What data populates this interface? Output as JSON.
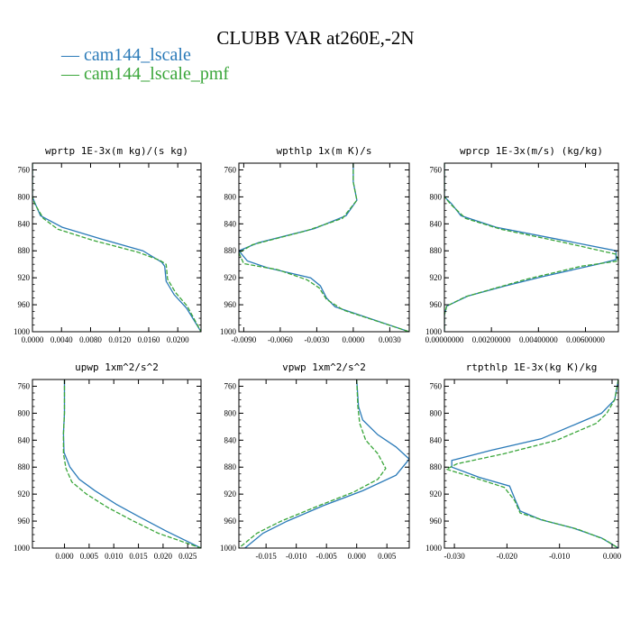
{
  "title": "CLUBB VAR at260E,-2N",
  "legend": [
    {
      "label": "cam144_lscale",
      "color": "#2a7ab8"
    },
    {
      "label": "cam144_lscale_pmf",
      "color": "#3aa63a"
    }
  ],
  "chart_data": [
    {
      "type": "line",
      "title": "wprtp   1E-3x(m kg)/(s kg)",
      "xlim": [
        0.0,
        0.0232
      ],
      "ylim": [
        750,
        1000
      ],
      "xticks": [
        0.0,
        0.004,
        0.008,
        0.012,
        0.016,
        0.02
      ],
      "xtick_labels": [
        "0.0000",
        "0.0040",
        "0.0080",
        "0.0120",
        "0.0160",
        "0.0200"
      ],
      "yticks": [
        760,
        800,
        840,
        880,
        920,
        960,
        1000
      ],
      "ytick_labels": [
        "760",
        "800",
        "840",
        "880",
        "920",
        "960",
        "1000"
      ],
      "series": [
        {
          "name": "cam144_lscale",
          "x": [
            0.0,
            0.0,
            0.0003,
            0.0011,
            0.0041,
            0.0093,
            0.0152,
            0.0178,
            0.0182,
            0.0184,
            0.0195,
            0.0212,
            0.0232
          ],
          "y": [
            750,
            800,
            808,
            828,
            845,
            862,
            880,
            897,
            903,
            925,
            945,
            965,
            1000
          ]
        },
        {
          "name": "cam144_lscale_pmf",
          "x": [
            0.0,
            0.0,
            0.0003,
            0.0015,
            0.0035,
            0.0085,
            0.0145,
            0.0175,
            0.0184,
            0.0186,
            0.0197,
            0.0213,
            0.0232
          ],
          "y": [
            750,
            800,
            810,
            832,
            848,
            865,
            882,
            894,
            900,
            922,
            942,
            962,
            1000
          ]
        }
      ]
    },
    {
      "type": "line",
      "title": "wpthlp   1x(m K)/s",
      "xlim": [
        -0.0094,
        0.0046
      ],
      "ylim": [
        750,
        1000
      ],
      "xticks": [
        -0.009,
        -0.006,
        -0.003,
        0.0,
        0.003
      ],
      "xtick_labels": [
        "-0.0090",
        "-0.0060",
        "-0.0030",
        "0.0000",
        "0.0030"
      ],
      "yticks": [
        760,
        800,
        840,
        880,
        920,
        960,
        1000
      ],
      "ytick_labels": [
        "760",
        "800",
        "840",
        "880",
        "920",
        "960",
        "1000"
      ],
      "series": [
        {
          "name": "cam144_lscale",
          "x": [
            0.0,
            0.0,
            0.0003,
            -0.0006,
            -0.0032,
            -0.0078,
            -0.0094,
            -0.0087,
            -0.0071,
            -0.0035,
            -0.0027,
            -0.0022,
            -0.0015,
            0.0046
          ],
          "y": [
            750,
            778,
            805,
            828,
            847,
            868,
            880,
            895,
            905,
            920,
            932,
            950,
            963,
            1000
          ]
        },
        {
          "name": "cam144_lscale_pmf",
          "x": [
            0.0,
            0.0,
            0.0003,
            -0.0009,
            -0.0038,
            -0.0083,
            -0.0094,
            -0.009,
            -0.0062,
            -0.0038,
            -0.0028,
            -0.0022,
            -0.0008,
            0.0046
          ],
          "y": [
            750,
            778,
            805,
            832,
            850,
            871,
            883,
            899,
            908,
            923,
            935,
            952,
            968,
            1000
          ]
        }
      ]
    },
    {
      "type": "line",
      "title": "wprcp   1E-3x(m/s) (kg/kg)",
      "xlim": [
        0.0,
        0.0074
      ],
      "ylim": [
        750,
        1000
      ],
      "xticks": [
        0.0,
        0.002,
        0.004,
        0.006
      ],
      "xtick_labels": [
        "0.00000000",
        "0.00200000",
        "0.00400000",
        "0.00600000"
      ],
      "yticks": [
        760,
        800,
        840,
        880,
        920,
        960,
        1000
      ],
      "ytick_labels": [
        "760",
        "800",
        "840",
        "880",
        "920",
        "960",
        "1000"
      ],
      "series": [
        {
          "name": "cam144_lscale",
          "x": [
            0.0,
            0.0,
            0.0003,
            0.0007,
            0.0022,
            0.0047,
            0.0073,
            0.0073,
            0.0065,
            0.0042,
            0.0026,
            0.001,
            0.0001,
            0.0,
            0.0
          ],
          "y": [
            750,
            800,
            810,
            828,
            845,
            862,
            880,
            893,
            900,
            918,
            932,
            947,
            962,
            975,
            1000
          ]
        },
        {
          "name": "cam144_lscale_pmf",
          "x": [
            0.0,
            0.0,
            0.0003,
            0.0009,
            0.0024,
            0.005,
            0.0073,
            0.0074,
            0.0058,
            0.0035,
            0.0022,
            0.0009,
            0.0001,
            0.0,
            0.0
          ],
          "y": [
            750,
            800,
            812,
            832,
            848,
            867,
            885,
            895,
            903,
            922,
            935,
            948,
            962,
            975,
            1000
          ]
        }
      ]
    },
    {
      "type": "line",
      "title": "upwp   1xm^2/s^2",
      "xlim": [
        -0.0065,
        0.0277
      ],
      "ylim": [
        750,
        1000
      ],
      "xticks": [
        0.0,
        0.005,
        0.01,
        0.015,
        0.02,
        0.025
      ],
      "xtick_labels": [
        "0.000",
        "0.005",
        "0.010",
        "0.015",
        "0.020",
        "0.025"
      ],
      "yticks": [
        760,
        800,
        840,
        880,
        920,
        960,
        1000
      ],
      "ytick_labels": [
        "760",
        "800",
        "840",
        "880",
        "920",
        "960",
        "1000"
      ],
      "series": [
        {
          "name": "cam144_lscale",
          "x": [
            0.0,
            0.0,
            -0.0002,
            -0.0001,
            0.0011,
            0.003,
            0.0062,
            0.0105,
            0.0155,
            0.0207,
            0.0277
          ],
          "y": [
            750,
            800,
            830,
            858,
            880,
            898,
            915,
            935,
            955,
            975,
            1000
          ]
        },
        {
          "name": "cam144_lscale_pmf",
          "x": [
            0.0,
            0.0,
            -0.0002,
            -0.0002,
            0.0003,
            0.0015,
            0.0045,
            0.0088,
            0.014,
            0.019,
            0.0277
          ],
          "y": [
            750,
            800,
            830,
            860,
            882,
            902,
            920,
            940,
            960,
            978,
            1000
          ]
        }
      ]
    },
    {
      "type": "line",
      "title": "vpwp   1xm^2/s^2",
      "xlim": [
        -0.0195,
        0.0087
      ],
      "ylim": [
        750,
        1000
      ],
      "xticks": [
        -0.015,
        -0.01,
        -0.005,
        0.0,
        0.005
      ],
      "xtick_labels": [
        "-0.015",
        "-0.010",
        "-0.005",
        "0.000",
        "0.005"
      ],
      "yticks": [
        760,
        800,
        840,
        880,
        920,
        960,
        1000
      ],
      "ytick_labels": [
        "760",
        "800",
        "840",
        "880",
        "920",
        "960",
        "1000"
      ],
      "series": [
        {
          "name": "cam144_lscale",
          "x": [
            0.0,
            0.0003,
            0.001,
            0.0035,
            0.0065,
            0.0087,
            0.0065,
            0.001,
            -0.0055,
            -0.0115,
            -0.0155,
            -0.0185
          ],
          "y": [
            750,
            790,
            810,
            832,
            850,
            868,
            892,
            915,
            937,
            960,
            978,
            1000
          ]
        },
        {
          "name": "cam144_lscale_pmf",
          "x": [
            0.0,
            0.0002,
            0.0005,
            0.0015,
            0.0035,
            0.0048,
            0.0035,
            -0.0005,
            -0.0065,
            -0.0125,
            -0.0165,
            -0.0195
          ],
          "y": [
            750,
            790,
            815,
            840,
            860,
            882,
            898,
            917,
            938,
            960,
            978,
            1000
          ]
        }
      ]
    },
    {
      "type": "line",
      "title": "rtpthlp   1E-3x(kg K)/kg",
      "xlim": [
        -0.0319,
        0.0012
      ],
      "ylim": [
        750,
        1000
      ],
      "xticks": [
        -0.03,
        -0.02,
        -0.01,
        0.0
      ],
      "xtick_labels": [
        "-0.030",
        "-0.020",
        "-0.010",
        "0.000"
      ],
      "yticks": [
        760,
        800,
        840,
        880,
        920,
        960,
        1000
      ],
      "ytick_labels": [
        "760",
        "800",
        "840",
        "880",
        "920",
        "960",
        "1000"
      ],
      "series": [
        {
          "name": "cam144_lscale",
          "x": [
            0.0012,
            0.0005,
            -0.002,
            -0.005,
            -0.0135,
            -0.023,
            -0.0305,
            -0.0305,
            -0.0253,
            -0.0195,
            -0.0185,
            -0.0175,
            -0.0135,
            -0.0075,
            -0.002,
            0.0012
          ],
          "y": [
            750,
            780,
            800,
            810,
            838,
            855,
            870,
            880,
            895,
            908,
            927,
            945,
            958,
            970,
            985,
            1000
          ]
        },
        {
          "name": "cam144_lscale_pmf",
          "x": [
            0.0012,
            0.0005,
            -0.001,
            -0.003,
            -0.0105,
            -0.0205,
            -0.0295,
            -0.0315,
            -0.0265,
            -0.0205,
            -0.0185,
            -0.0175,
            -0.0125,
            -0.0065,
            -0.0015,
            0.0012
          ],
          "y": [
            750,
            780,
            800,
            815,
            840,
            860,
            875,
            883,
            895,
            910,
            930,
            948,
            960,
            972,
            987,
            1000
          ]
        }
      ]
    }
  ]
}
